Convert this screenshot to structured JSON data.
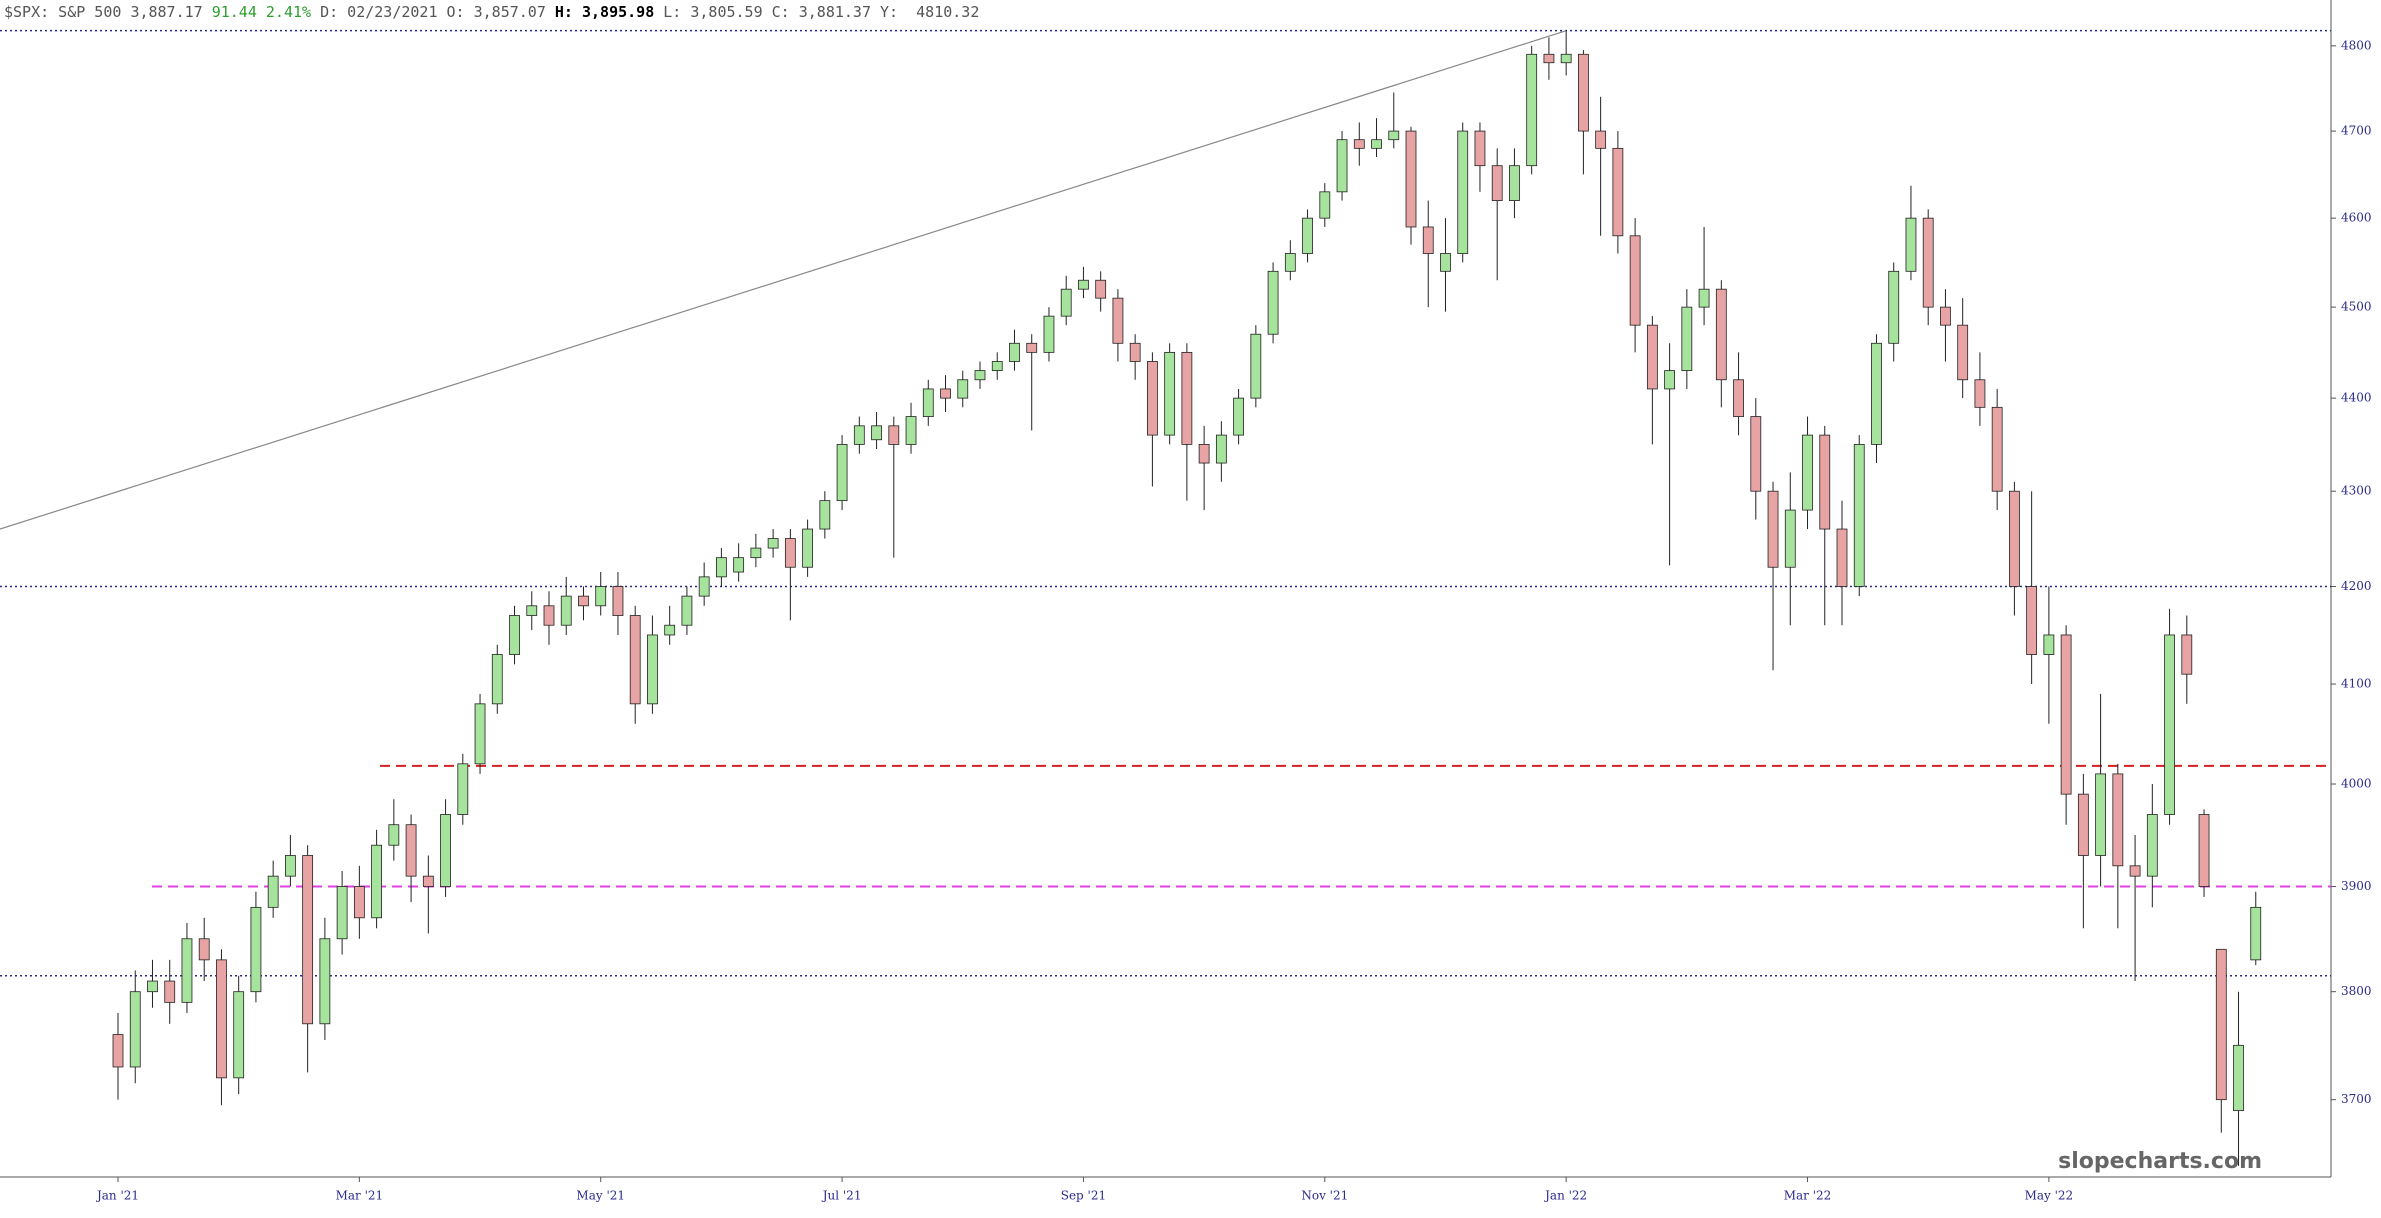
{
  "chart_data": {
    "type": "candlestick",
    "header": [
      "$SPX: S&P 500",
      "3,887.17",
      "91.44",
      "2.41%",
      "D: 02/23/2021",
      "O: 3,857.07",
      "H:",
      "3,895.98",
      "L: 3,805.59",
      "C: 3,881.37",
      "Y:",
      "4810.32"
    ],
    "watermark": "slopecharts.com",
    "log_scale": true,
    "ylim": [
      3630,
      4820
    ],
    "yticks": [
      3700,
      3800,
      3900,
      4000,
      4100,
      4200,
      4300,
      4400,
      4500,
      4600,
      4700,
      4800
    ],
    "up_color": "#a6e39c",
    "down_color": "#e8a4a4",
    "categories": [
      "Jan '21",
      null,
      null,
      null,
      null,
      null,
      null,
      null,
      null,
      null,
      null,
      null,
      null,
      null,
      "Mar '21",
      null,
      null,
      null,
      null,
      null,
      null,
      null,
      null,
      null,
      null,
      null,
      null,
      null,
      "May '21",
      null,
      null,
      null,
      null,
      null,
      null,
      null,
      null,
      null,
      null,
      null,
      null,
      null,
      "Jul '21",
      null,
      null,
      null,
      null,
      null,
      null,
      null,
      null,
      null,
      null,
      null,
      null,
      null,
      "Sep '21",
      null,
      null,
      null,
      null,
      null,
      null,
      null,
      null,
      null,
      null,
      null,
      null,
      null,
      "Nov '21",
      null,
      null,
      null,
      null,
      null,
      null,
      null,
      null,
      null,
      null,
      null,
      null,
      null,
      "Jan '22",
      null,
      null,
      null,
      null,
      null,
      null,
      null,
      null,
      null,
      null,
      null,
      null,
      null,
      "Mar '22",
      null,
      null,
      null,
      null,
      null,
      null,
      null,
      null,
      null,
      null,
      null,
      null,
      null,
      "May '22",
      null,
      null,
      null,
      null,
      null,
      null,
      null,
      null,
      null,
      null,
      null,
      null
    ],
    "open": [
      3760,
      3730,
      3800,
      3810,
      3790,
      3850,
      3830,
      3720,
      3800,
      3880,
      3910,
      3930,
      3770,
      3850,
      3900,
      3870,
      3940,
      3960,
      3910,
      3900,
      3970,
      4020,
      4080,
      4130,
      4170,
      4180,
      4160,
      4190,
      4180,
      4200,
      4170,
      4080,
      4150,
      4160,
      4190,
      4210,
      4215,
      4230,
      4240,
      4250,
      4220,
      4260,
      4290,
      4350,
      4355,
      4370,
      4350,
      4380,
      4410,
      4400,
      4420,
      4430,
      4440,
      4460,
      4450,
      4490,
      4520,
      4530,
      4510,
      4460,
      4440,
      4360,
      4450,
      4350,
      4330,
      4360,
      4400,
      4470,
      4540,
      4560,
      4600,
      4630,
      4690,
      4680,
      4690,
      4700,
      4590,
      4540,
      4560,
      4700,
      4660,
      4620,
      4660,
      4790,
      4780,
      4790,
      4700,
      4680,
      4580,
      4480,
      4410,
      4430,
      4500,
      4520,
      4420,
      4380,
      4300,
      4220,
      4280,
      4360,
      4260,
      4200,
      4350,
      4460,
      4540,
      4600,
      4500,
      4480,
      4420,
      4390,
      4300,
      4200,
      4130,
      4150,
      3990,
      3930,
      4010,
      3920,
      3910,
      3970,
      4150,
      3970,
      3840,
      3690,
      3830
    ],
    "high": [
      3780,
      3820,
      3830,
      3830,
      3865,
      3870,
      3840,
      3815,
      3895,
      3925,
      3950,
      3940,
      3870,
      3915,
      3920,
      3955,
      3985,
      3970,
      3930,
      3985,
      4030,
      4090,
      4140,
      4180,
      4195,
      4195,
      4210,
      4200,
      4215,
      4215,
      4180,
      4170,
      4180,
      4200,
      4225,
      4240,
      4245,
      4255,
      4260,
      4260,
      4270,
      4300,
      4360,
      4380,
      4385,
      4380,
      4395,
      4420,
      4425,
      4430,
      4440,
      4450,
      4475,
      4470,
      4500,
      4535,
      4545,
      4540,
      4520,
      4470,
      4450,
      4460,
      4460,
      4370,
      4375,
      4410,
      4480,
      4550,
      4575,
      4610,
      4640,
      4700,
      4710,
      4715,
      4745,
      4705,
      4620,
      4600,
      4710,
      4710,
      4680,
      4680,
      4800,
      4810,
      4818,
      4795,
      4740,
      4700,
      4600,
      4490,
      4460,
      4520,
      4590,
      4530,
      4450,
      4400,
      4310,
      4320,
      4380,
      4370,
      4290,
      4360,
      4470,
      4550,
      4637,
      4610,
      4520,
      4510,
      4450,
      4410,
      4310,
      4300,
      4200,
      4160,
      4010,
      4090,
      4020,
      3950,
      4000,
      4177,
      4170,
      3975,
      3840,
      3800,
      3895
    ],
    "low": [
      3700,
      3715,
      3785,
      3770,
      3780,
      3810,
      3695,
      3705,
      3790,
      3870,
      3900,
      3725,
      3755,
      3835,
      3850,
      3860,
      3925,
      3885,
      3855,
      3890,
      3960,
      4010,
      4070,
      4120,
      4155,
      4140,
      4150,
      4165,
      4170,
      4150,
      4060,
      4070,
      4140,
      4150,
      4180,
      4200,
      4205,
      4220,
      4230,
      4165,
      4210,
      4250,
      4280,
      4340,
      4345,
      4230,
      4340,
      4370,
      4385,
      4390,
      4410,
      4420,
      4430,
      4365,
      4440,
      4480,
      4510,
      4495,
      4440,
      4420,
      4305,
      4350,
      4290,
      4280,
      4310,
      4350,
      4390,
      4460,
      4530,
      4550,
      4590,
      4620,
      4660,
      4670,
      4680,
      4570,
      4500,
      4495,
      4550,
      4630,
      4530,
      4600,
      4650,
      4760,
      4765,
      4650,
      4580,
      4560,
      4450,
      4350,
      4222,
      4410,
      4480,
      4390,
      4360,
      4270,
      4114,
      4160,
      4260,
      4160,
      4160,
      4190,
      4330,
      4440,
      4530,
      4480,
      4440,
      4400,
      4370,
      4280,
      4170,
      4100,
      4060,
      3960,
      3860,
      3900,
      3860,
      3810,
      3880,
      3960,
      4080,
      3890,
      3670,
      3640,
      3825
    ],
    "close": [
      3730,
      3800,
      3810,
      3790,
      3850,
      3830,
      3720,
      3800,
      3880,
      3910,
      3930,
      3770,
      3850,
      3900,
      3870,
      3940,
      3960,
      3910,
      3900,
      3970,
      4020,
      4080,
      4130,
      4170,
      4180,
      4160,
      4190,
      4180,
      4200,
      4170,
      4080,
      4150,
      4160,
      4190,
      4210,
      4230,
      4230,
      4240,
      4250,
      4220,
      4260,
      4290,
      4350,
      4370,
      4370,
      4350,
      4380,
      4410,
      4400,
      4420,
      4430,
      4440,
      4460,
      4450,
      4490,
      4520,
      4530,
      4510,
      4460,
      4440,
      4360,
      4450,
      4350,
      4330,
      4360,
      4400,
      4470,
      4540,
      4560,
      4600,
      4630,
      4690,
      4680,
      4690,
      4700,
      4590,
      4560,
      4560,
      4700,
      4660,
      4620,
      4660,
      4790,
      4780,
      4790,
      4700,
      4680,
      4580,
      4480,
      4410,
      4430,
      4500,
      4520,
      4420,
      4380,
      4300,
      4220,
      4280,
      4360,
      4260,
      4200,
      4350,
      4460,
      4540,
      4600,
      4500,
      4480,
      4420,
      4390,
      4300,
      4200,
      4130,
      4150,
      3990,
      3930,
      4010,
      3920,
      3910,
      3970,
      4150,
      4110,
      3900,
      3700,
      3750,
      3880
    ],
    "hlines": [
      {
        "value": 4818,
        "style": "dotted",
        "color": "#2b2b8c"
      },
      {
        "value": 4200,
        "style": "dotted",
        "color": "#2b2b8c"
      },
      {
        "value": 3815,
        "style": "dotted",
        "color": "#2b2b8c"
      },
      {
        "value": 4018,
        "style": "dashed",
        "color": "#d42020"
      },
      {
        "value": 3900,
        "style": "dashed",
        "color": "#e040e0"
      }
    ],
    "trendline": {
      "start": 4260,
      "end": 4818,
      "color": "#888888"
    }
  }
}
